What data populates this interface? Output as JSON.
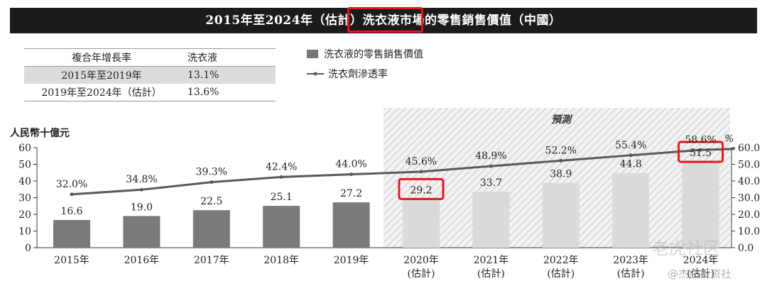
{
  "title": "2015年至2024年（估計）洗衣液市場的零售銷售價值（中國）",
  "cagr_table": {
    "headers": [
      "複合年增長率",
      "洗衣液"
    ],
    "rows": [
      {
        "period": "2015年至2019年",
        "value": "13.1%"
      },
      {
        "period": "2019年至2024年（估計）",
        "value": "13.6%"
      }
    ]
  },
  "watermark": "老虎社区",
  "watermark2": "@杰曲投资社",
  "colors": {
    "historical_bar": "#7a7a7a",
    "forecast_bar": "#dadada",
    "line": "#595959",
    "highlight": "#e8161b",
    "banner": "#1b1b1b"
  },
  "chart_data": {
    "type": "bar",
    "title": "2015年至2024年（估計）洗衣液市場的零售銷售價值（中國）",
    "categories": [
      "2015年",
      "2016年",
      "2017年",
      "2018年",
      "2019年",
      "2020年\n(估計)",
      "2021年\n(估計)",
      "2022年\n(估計)",
      "2023年\n(估計)",
      "2024年\n(估計)"
    ],
    "series": [
      {
        "name": "洗衣液的零售銷售價值",
        "type": "bar",
        "axis": "left",
        "values": [
          16.6,
          19.0,
          22.5,
          25.1,
          27.2,
          29.2,
          33.7,
          38.9,
          44.8,
          51.5
        ],
        "labels": [
          "16.6",
          "19.0",
          "22.5",
          "25.1",
          "27.2",
          "29.2",
          "33.7",
          "38.9",
          "44.8",
          "51.5"
        ]
      },
      {
        "name": "洗衣劑滲透率",
        "type": "line",
        "axis": "right",
        "values": [
          32.0,
          34.8,
          39.3,
          42.4,
          44.0,
          45.6,
          48.9,
          52.2,
          55.4,
          58.6
        ],
        "labels": [
          "32.0%",
          "34.8%",
          "39.3%",
          "42.4%",
          "44.0%",
          "45.6%",
          "48.9%",
          "52.2%",
          "55.4%",
          "58.6%"
        ]
      }
    ],
    "ylabel": "人民幣十億元",
    "y2label": "%",
    "ylim": [
      0,
      60
    ],
    "yticks": [
      "0",
      "10",
      "20",
      "30",
      "40",
      "50",
      "60"
    ],
    "y2lim": [
      0,
      60
    ],
    "y2ticks": [
      "0.0",
      "10.0",
      "20.0",
      "30.0",
      "40.0",
      "50.0",
      "60.0"
    ],
    "forecast_label": "預測",
    "forecast_start_index": 5,
    "highlighted_bars": [
      5,
      9
    ],
    "legend_position": "top"
  }
}
